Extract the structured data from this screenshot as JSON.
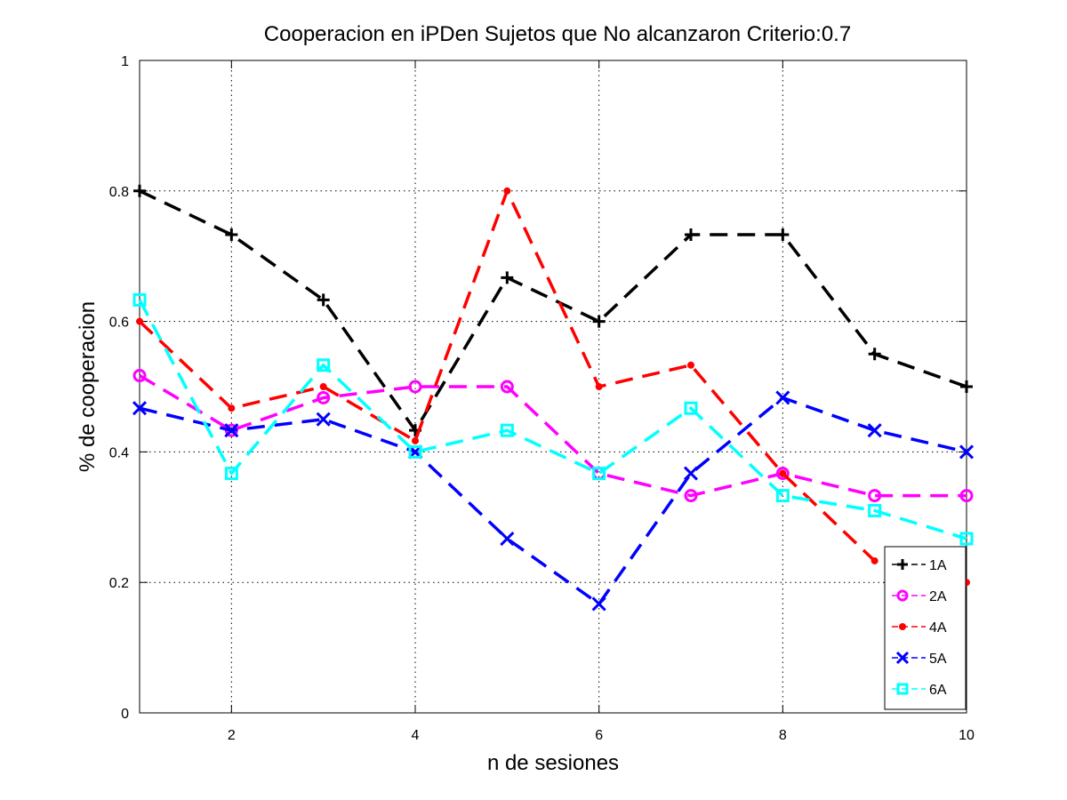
{
  "chart_data": {
    "type": "line",
    "title": "Cooperacion en iPDen Sujetos que No alcanzaron Criterio:0.7",
    "xlabel": "n de sesiones",
    "ylabel": "% de cooperacion",
    "xlim": [
      1,
      10
    ],
    "ylim": [
      0,
      1
    ],
    "xticks": [
      2,
      4,
      6,
      8,
      10
    ],
    "yticks": [
      0,
      0.2,
      0.4,
      0.6,
      0.8,
      1
    ],
    "xtick_labels": [
      "2",
      "4",
      "6",
      "8",
      "10"
    ],
    "ytick_labels": [
      "0",
      "0.2",
      "0.4",
      "0.6",
      "0.8",
      "1"
    ],
    "grid": true,
    "legend_position": "bottom-right",
    "x": [
      1,
      2,
      3,
      4,
      5,
      6,
      7,
      8,
      9,
      10
    ],
    "series": [
      {
        "name": "1A",
        "color": "#000000",
        "marker": "plus",
        "values": [
          0.8,
          0.733,
          0.633,
          0.433,
          0.667,
          0.6,
          0.733,
          0.733,
          0.55,
          0.5
        ]
      },
      {
        "name": "2A",
        "color": "#ff00ff",
        "marker": "circle",
        "values": [
          0.517,
          0.433,
          0.483,
          0.5,
          0.5,
          0.367,
          0.333,
          0.367,
          0.333,
          0.333
        ]
      },
      {
        "name": "4A",
        "color": "#ff0000",
        "marker": "dot",
        "values": [
          0.6,
          0.467,
          0.5,
          0.417,
          0.8,
          0.5,
          0.533,
          0.367,
          0.233,
          0.2
        ]
      },
      {
        "name": "5A",
        "color": "#0000ff",
        "marker": "x",
        "values": [
          0.467,
          0.433,
          0.45,
          0.4,
          0.267,
          0.167,
          0.367,
          0.483,
          0.433,
          0.4
        ]
      },
      {
        "name": "6A",
        "color": "#00ffff",
        "marker": "square",
        "values": [
          0.633,
          0.367,
          0.533,
          0.4,
          0.433,
          0.367,
          0.467,
          0.333,
          0.31,
          0.267
        ]
      }
    ]
  }
}
